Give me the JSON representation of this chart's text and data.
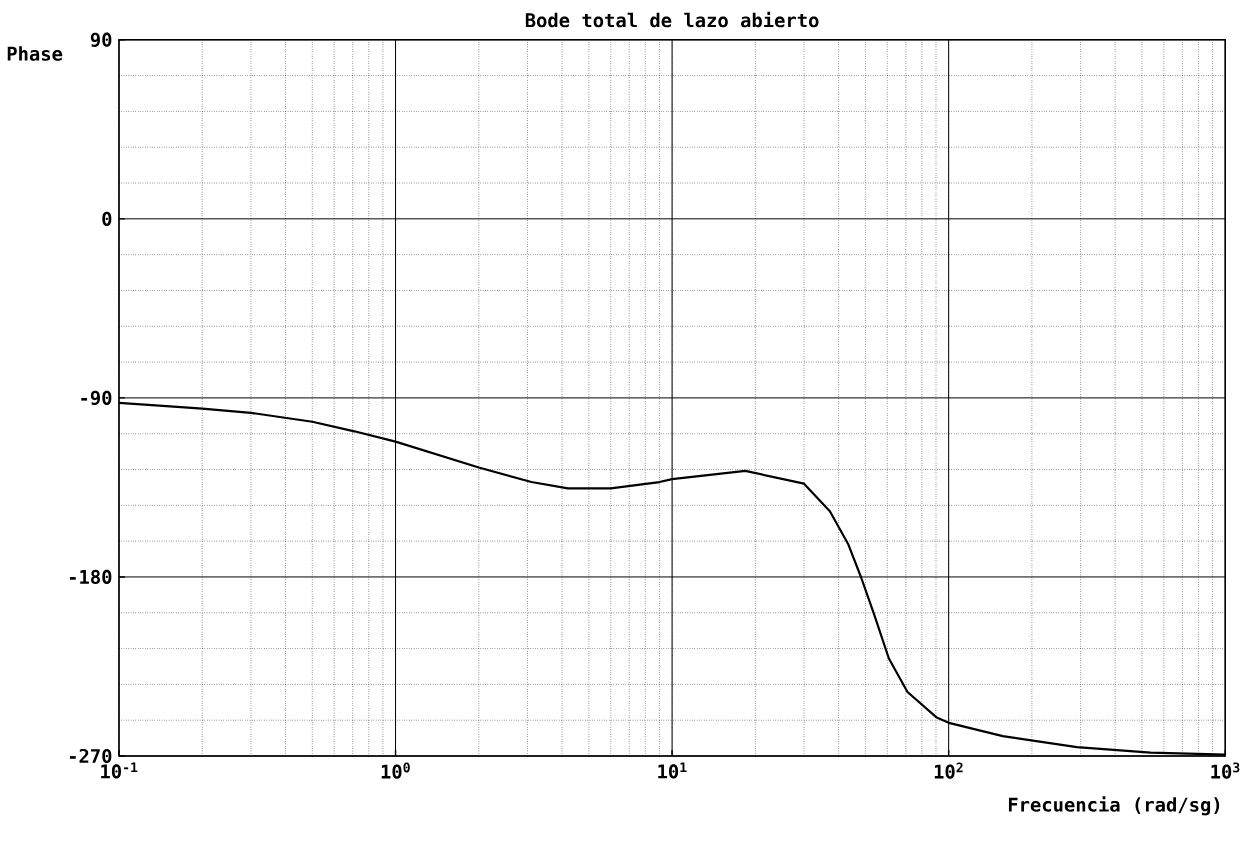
{
  "chart_data": {
    "type": "line",
    "title": "Bode total de lazo abierto",
    "xlabel": "Frecuencia (rad/sg)",
    "ylabel": "Phase",
    "log": "x",
    "grid": true,
    "marker": "none",
    "line_style": "solid",
    "xlim": [
      0.1,
      1000
    ],
    "ylim": [
      -270,
      90
    ],
    "xticks": [
      {
        "value": 0.1,
        "label": "10$^{-1}$"
      },
      {
        "value": 1,
        "label": "10$^{0}$"
      },
      {
        "value": 10,
        "label": "10$^{1}$"
      },
      {
        "value": 100,
        "label": "10$^{2}$"
      },
      {
        "value": 1000,
        "label": "10$^{3}$"
      }
    ],
    "yticks": [
      -270,
      -180,
      -90,
      0,
      90
    ],
    "x": [
      0.1,
      0.144,
      0.2,
      0.3,
      0.5,
      0.71,
      1,
      2,
      3.1,
      4.2,
      6,
      9,
      10,
      18.4,
      30,
      37.2,
      43.4,
      48.3,
      53.8,
      60.8,
      71,
      90.6,
      101,
      157,
      291,
      537,
      1000
    ],
    "series": [
      {
        "color": "#000000",
        "values": [
          -92.5,
          -94,
          -95.4,
          -97.5,
          -102,
          -106.8,
          -112,
          -125,
          -132.3,
          -135.5,
          -135.5,
          -132.3,
          -130.8,
          -126.7,
          -133.1,
          -147,
          -163.7,
          -180.4,
          -198.9,
          -221,
          -237.8,
          -250.7,
          -253.5,
          -260,
          -265.5,
          -268.3,
          -269.3
        ]
      }
    ]
  }
}
